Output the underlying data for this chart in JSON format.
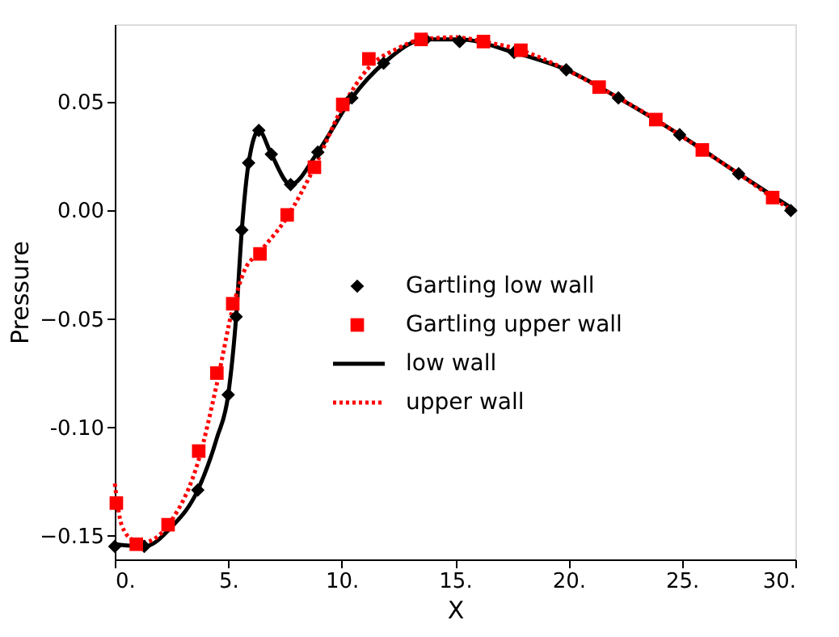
{
  "chart_data": {
    "type": "line",
    "xlabel": "X",
    "ylabel": "Pressure",
    "xlim": [
      0,
      30
    ],
    "xticks": [
      {
        "value": 0,
        "label": "0."
      },
      {
        "value": 5,
        "label": "5."
      },
      {
        "value": 10,
        "label": "10."
      },
      {
        "value": 15,
        "label": "15."
      },
      {
        "value": 20,
        "label": "20."
      },
      {
        "value": 25,
        "label": "25."
      },
      {
        "value": 30,
        "label": "30."
      }
    ],
    "ylim": [
      -0.161,
      0.086
    ],
    "yticks": [
      -0.15,
      {
        "value": -0.1,
        "label": "-0.10"
      },
      -0.05,
      {
        "value": 0,
        "label": "0.00"
      },
      0.05
    ],
    "grid": false,
    "legend": "bottom right",
    "series": [
      {
        "name": "Gartling low wall",
        "type": "scatter",
        "marker": "diamond",
        "color": "#000000",
        "x": [
          0,
          1.3,
          3.66,
          5.0,
          5.35,
          5.6,
          5.9,
          6.35,
          6.9,
          7.75,
          8.95,
          10.45,
          11.85,
          13.7,
          15.2,
          17.6,
          19.9,
          22.2,
          24.9,
          27.5,
          29.8
        ],
        "values": [
          -0.155,
          -0.155,
          -0.129,
          -0.085,
          -0.049,
          -0.009,
          0.022,
          0.037,
          0.026,
          0.012,
          0.027,
          0.052,
          0.068,
          0.079,
          0.078,
          0.073,
          0.065,
          0.052,
          0.035,
          0.017,
          0.0
        ]
      },
      {
        "name": "Gartling upper wall",
        "type": "scatter",
        "marker": "square",
        "color": "#ff0000",
        "x": [
          0.07,
          0.95,
          2.35,
          3.7,
          4.5,
          5.2,
          6.4,
          7.6,
          8.8,
          10.05,
          11.2,
          13.5,
          16.25,
          17.9,
          21.35,
          23.85,
          25.9,
          29.0
        ],
        "values": [
          -0.135,
          -0.154,
          -0.145,
          -0.111,
          -0.075,
          -0.043,
          -0.02,
          -0.002,
          0.02,
          0.049,
          0.07,
          0.079,
          0.078,
          0.074,
          0.057,
          0.042,
          0.028,
          0.006
        ]
      },
      {
        "name": "low wall",
        "line_style": "solid",
        "color": "#000000",
        "x": [
          0,
          1.3,
          2.5,
          3.66,
          4.5,
          5.0,
          5.35,
          5.6,
          5.9,
          6.35,
          6.9,
          7.75,
          8.95,
          10.45,
          11.85,
          13.7,
          15.2,
          17.6,
          19.9,
          22.2,
          24.9,
          27.5,
          30
        ],
        "values": [
          -0.154,
          -0.155,
          -0.146,
          -0.129,
          -0.105,
          -0.085,
          -0.049,
          -0.009,
          0.022,
          0.037,
          0.026,
          0.012,
          0.027,
          0.052,
          0.068,
          0.079,
          0.079,
          0.073,
          0.065,
          0.052,
          0.035,
          0.017,
          0.0
        ]
      },
      {
        "name": "upper wall",
        "line_style": "dotted",
        "color": "#ff0000",
        "x": [
          0,
          0.3,
          0.8,
          1.3,
          2.5,
          3.7,
          4.5,
          5.2,
          5.7,
          6.4,
          7.6,
          8.8,
          10.05,
          11.2,
          12.5,
          13.5,
          15,
          16.25,
          17.9,
          19.9,
          21.35,
          23.85,
          25.9,
          27.5,
          29,
          30
        ],
        "values": [
          -0.126,
          -0.145,
          -0.152,
          -0.153,
          -0.143,
          -0.115,
          -0.08,
          -0.045,
          -0.028,
          -0.019,
          -0.003,
          0.02,
          0.048,
          0.066,
          0.075,
          0.079,
          0.08,
          0.078,
          0.074,
          0.065,
          0.057,
          0.042,
          0.028,
          0.017,
          0.006,
          -0.001
        ]
      }
    ]
  }
}
